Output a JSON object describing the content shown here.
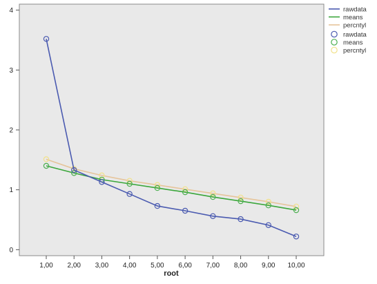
{
  "chart_data": {
    "type": "line",
    "title": "",
    "xlabel": "root",
    "ylabel": "",
    "categories": [
      "1,00",
      "2,00",
      "3,00",
      "4,00",
      "5,00",
      "6,00",
      "7,00",
      "8,00",
      "9,00",
      "10,00"
    ],
    "y_ticks": [
      "0",
      "1",
      "2",
      "3",
      "4"
    ],
    "ylim": [
      -0.1,
      4.1
    ],
    "grid": false,
    "legend_position": "top-right",
    "background": "#e9e9e9",
    "series": [
      {
        "name": "rawdata",
        "color": "#4a5ab0",
        "marker_color": "#4a5ab0",
        "values": [
          3.52,
          1.33,
          1.13,
          0.93,
          0.73,
          0.65,
          0.56,
          0.51,
          0.41,
          0.22
        ]
      },
      {
        "name": "means",
        "color": "#3aa63a",
        "marker_color": "#4caf50",
        "values": [
          1.4,
          1.28,
          1.17,
          1.1,
          1.03,
          0.96,
          0.88,
          0.81,
          0.74,
          0.66
        ]
      },
      {
        "name": "percntyl",
        "color": "#e6c49a",
        "marker_color": "#f2e18a",
        "values": [
          1.51,
          1.35,
          1.24,
          1.15,
          1.08,
          1.01,
          0.94,
          0.87,
          0.8,
          0.72
        ]
      }
    ],
    "legend": {
      "lines": [
        "rawdata",
        "means",
        "percntyl"
      ],
      "markers": [
        "rawdata",
        "means",
        "percntyl"
      ]
    }
  }
}
